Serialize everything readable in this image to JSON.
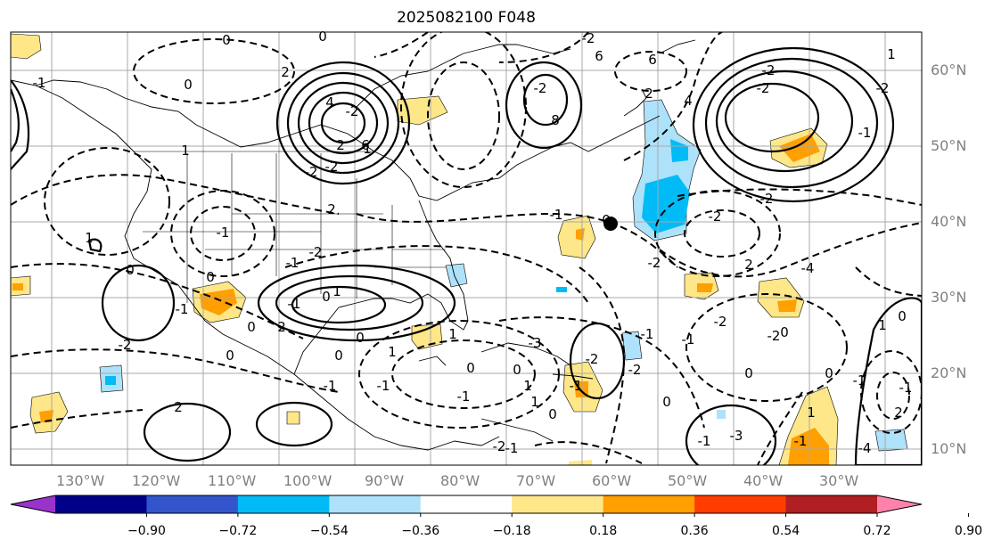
{
  "title": "2025082100 F048",
  "lat_labels": [
    "60°N",
    "50°N",
    "40°N",
    "30°N",
    "20°N",
    "10°N"
  ],
  "lon_labels": [
    "130°W",
    "120°W",
    "110°W",
    "100°W",
    "90°W",
    "80°W",
    "70°W",
    "60°W",
    "50°W",
    "40°W",
    "30°W"
  ],
  "colorbar": {
    "colors": [
      "#9933cc",
      "#000088",
      "#3355cc",
      "#00bbf5",
      "#aee2fa",
      "#ffffff",
      "#fde789",
      "#ff9f00",
      "#ff3d00",
      "#b01f22",
      "#fe82ac"
    ],
    "tick_labels": [
      "−0.90",
      "−0.72",
      "−0.54",
      "−0.36",
      "−0.18",
      "0.18",
      "0.36",
      "0.54",
      "0.72",
      "0.90"
    ]
  },
  "contour_labels": [
    "0",
    "0",
    "-1",
    "0",
    "2",
    "1",
    "2",
    "1",
    "4",
    "-2",
    "-2",
    "6",
    "-2",
    "-2",
    "8",
    "6",
    "2",
    "-2",
    "6",
    "4",
    "-2",
    "-2",
    "-1",
    "1",
    "-2",
    "-2",
    "-2",
    "2",
    "-4",
    "-2",
    "2",
    "-4",
    "-3",
    "-2",
    "-1",
    "-2",
    "-1",
    "0",
    "1",
    "2",
    "-1",
    "0",
    "-2",
    "2",
    "0",
    "1",
    "0",
    "1",
    "0",
    "-1",
    "-2",
    "-1",
    "0",
    "-1",
    "-2",
    "0",
    "-1",
    "0",
    "1",
    "-1",
    "-1",
    "-2",
    "0",
    "1",
    "-1",
    "0",
    "-1",
    "0",
    "1",
    "-1",
    "0",
    "-1",
    "1",
    "0",
    "-2",
    "-1",
    "1",
    "0",
    "-3",
    "2",
    "-1",
    "0",
    "0",
    "-1",
    "0",
    "0",
    "1",
    "-1",
    "0"
  ],
  "legend_marker": "storm-center"
}
